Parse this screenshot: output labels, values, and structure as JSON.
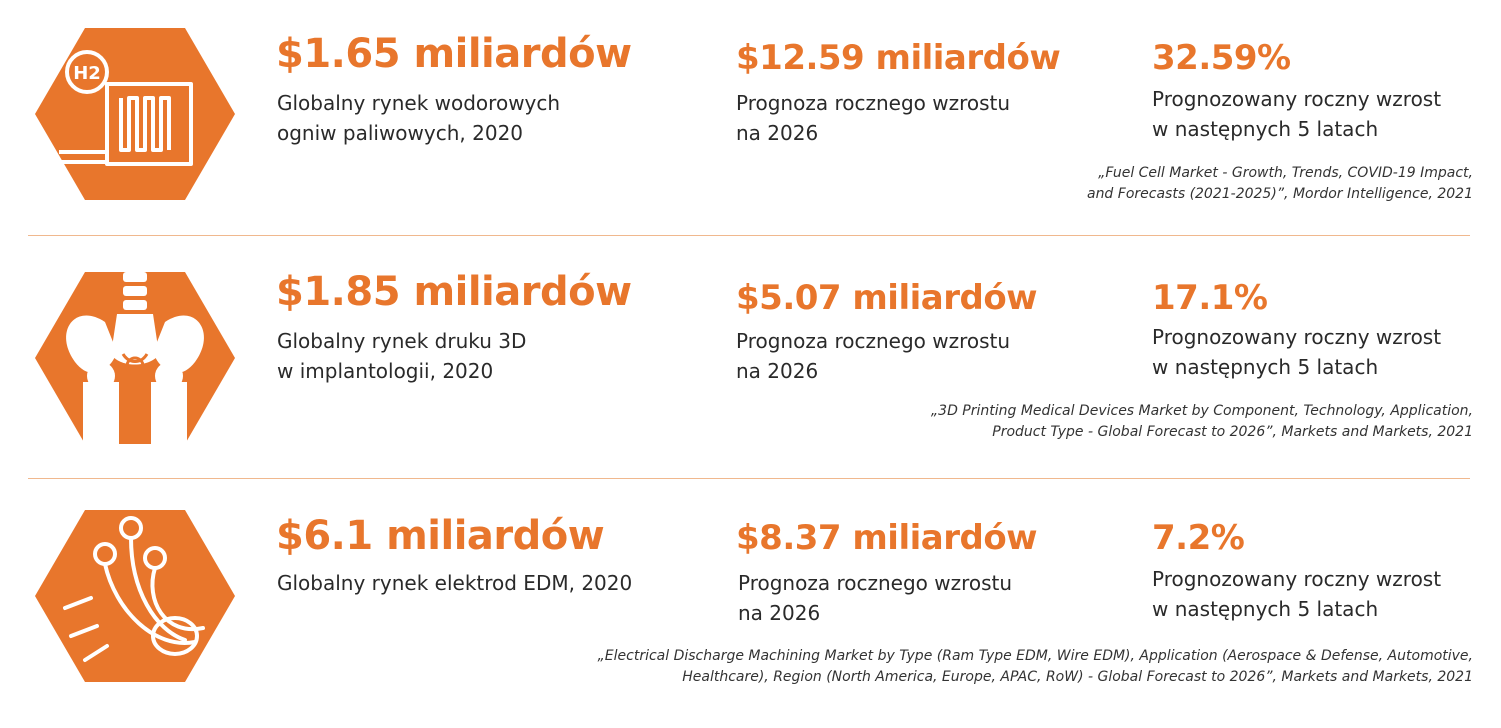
{
  "accent_color": "#e8762c",
  "rows": [
    {
      "icon": "hydrogen-fuel-cell-icon",
      "icon_label": "H2",
      "stat1_value": "$1.65 miliardów",
      "stat1_desc_line1": "Globalny rynek wodorowych",
      "stat1_desc_line2": "ogniw paliwowych, 2020",
      "stat2_value": "$12.59 miliardów",
      "stat2_desc_line1": "Prognoza rocznego wzrostu",
      "stat2_desc_line2": "na 2026",
      "stat3_value": "32.59%",
      "stat3_desc_line1": "Prognozowany roczny wzrost",
      "stat3_desc_line2": "w następnych 5 latach",
      "source_line1": "„Fuel Cell Market - Growth, Trends, COVID-19 Impact,",
      "source_line2": "and Forecasts (2021-2025)”, Mordor Intelligence, 2021"
    },
    {
      "icon": "hip-implant-icon",
      "stat1_value": "$1.85 miliardów",
      "stat1_desc_line1": "Globalny rynek druku 3D",
      "stat1_desc_line2": "w implantologii, 2020",
      "stat2_value": "$5.07 miliardów",
      "stat2_desc_line1": "Prognoza rocznego wzrostu",
      "stat2_desc_line2": "na 2026",
      "stat3_value": "17.1%",
      "stat3_desc_line1": "Prognozowany roczny wzrost",
      "stat3_desc_line2": "w następnych 5 latach",
      "source_line1": "„3D Printing Medical Devices Market by Component, Technology, Application,",
      "source_line2": "Product Type - Global Forecast to 2026”, Markets and Markets, 2021"
    },
    {
      "icon": "edm-electrodes-icon",
      "stat1_value": "$6.1 miliardów",
      "stat1_desc_line1": "Globalny rynek elektrod EDM, 2020",
      "stat2_value": "$8.37 miliardów",
      "stat2_desc_line1": "Prognoza rocznego wzrostu",
      "stat2_desc_line2": "na 2026",
      "stat3_value": "7.2%",
      "stat3_desc_line1": "Prognozowany roczny wzrost",
      "stat3_desc_line2": "w następnych 5 latach",
      "source_line1": "„Electrical Discharge Machining Market by Type (Ram Type EDM, Wire EDM), Application (Aerospace & Defense, Automotive,",
      "source_line2": "Healthcare), Region (North America, Europe, APAC, RoW) - Global Forecast to 2026”, Markets and Markets, 2021"
    }
  ]
}
